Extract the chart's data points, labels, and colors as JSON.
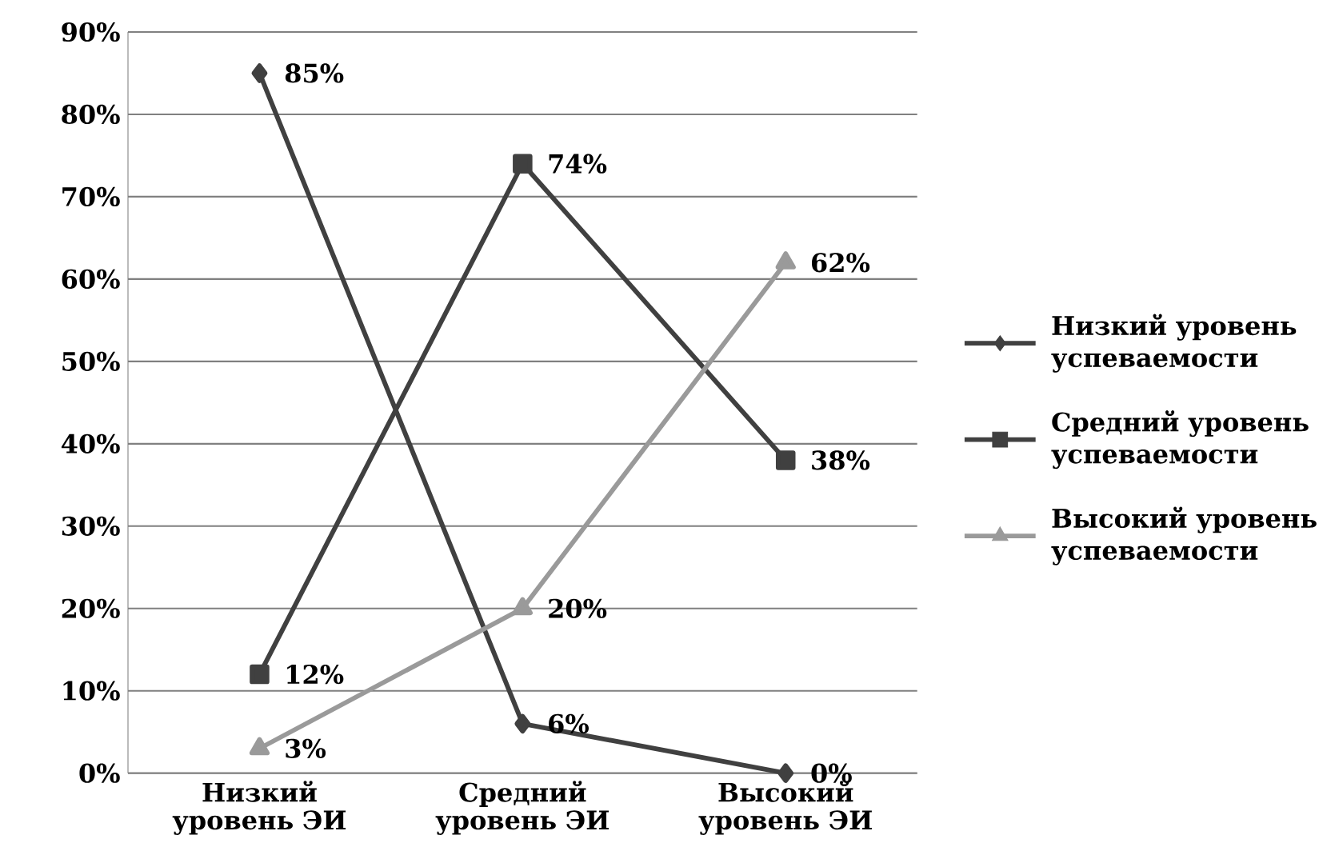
{
  "chart_data": {
    "type": "line",
    "categories": [
      "Низкий уровень ЭИ",
      "Средний уровень ЭИ",
      "Высокий уровень ЭИ"
    ],
    "series": [
      {
        "name": "Низкий уровень успеваемости",
        "color": "#404040",
        "marker": "diamond",
        "values": [
          85,
          6,
          0
        ],
        "value_labels": [
          "85%",
          "6%",
          "0%"
        ]
      },
      {
        "name": "Средний уровень успеваемости",
        "color": "#404040",
        "marker": "square",
        "values": [
          12,
          74,
          38
        ],
        "value_labels": [
          "12%",
          "74%",
          "38%"
        ]
      },
      {
        "name": "Высокий уровень успеваемости",
        "color": "#9a9a9a",
        "marker": "triangle",
        "values": [
          3,
          20,
          62
        ],
        "value_labels": [
          "3%",
          "20%",
          "62%"
        ]
      }
    ],
    "ylim": [
      0,
      90
    ],
    "yticks": [
      {
        "value": 0,
        "label": "0%"
      },
      {
        "value": 10,
        "label": "10%"
      },
      {
        "value": 20,
        "label": "20%"
      },
      {
        "value": 30,
        "label": "30%"
      },
      {
        "value": 40,
        "label": "40%"
      },
      {
        "value": 50,
        "label": "50%"
      },
      {
        "value": 60,
        "label": "60%"
      },
      {
        "value": 70,
        "label": "70%"
      },
      {
        "value": 80,
        "label": "80%"
      },
      {
        "value": 90,
        "label": "90%"
      }
    ],
    "grid": "y",
    "legend": "right",
    "line_style": "solid"
  }
}
